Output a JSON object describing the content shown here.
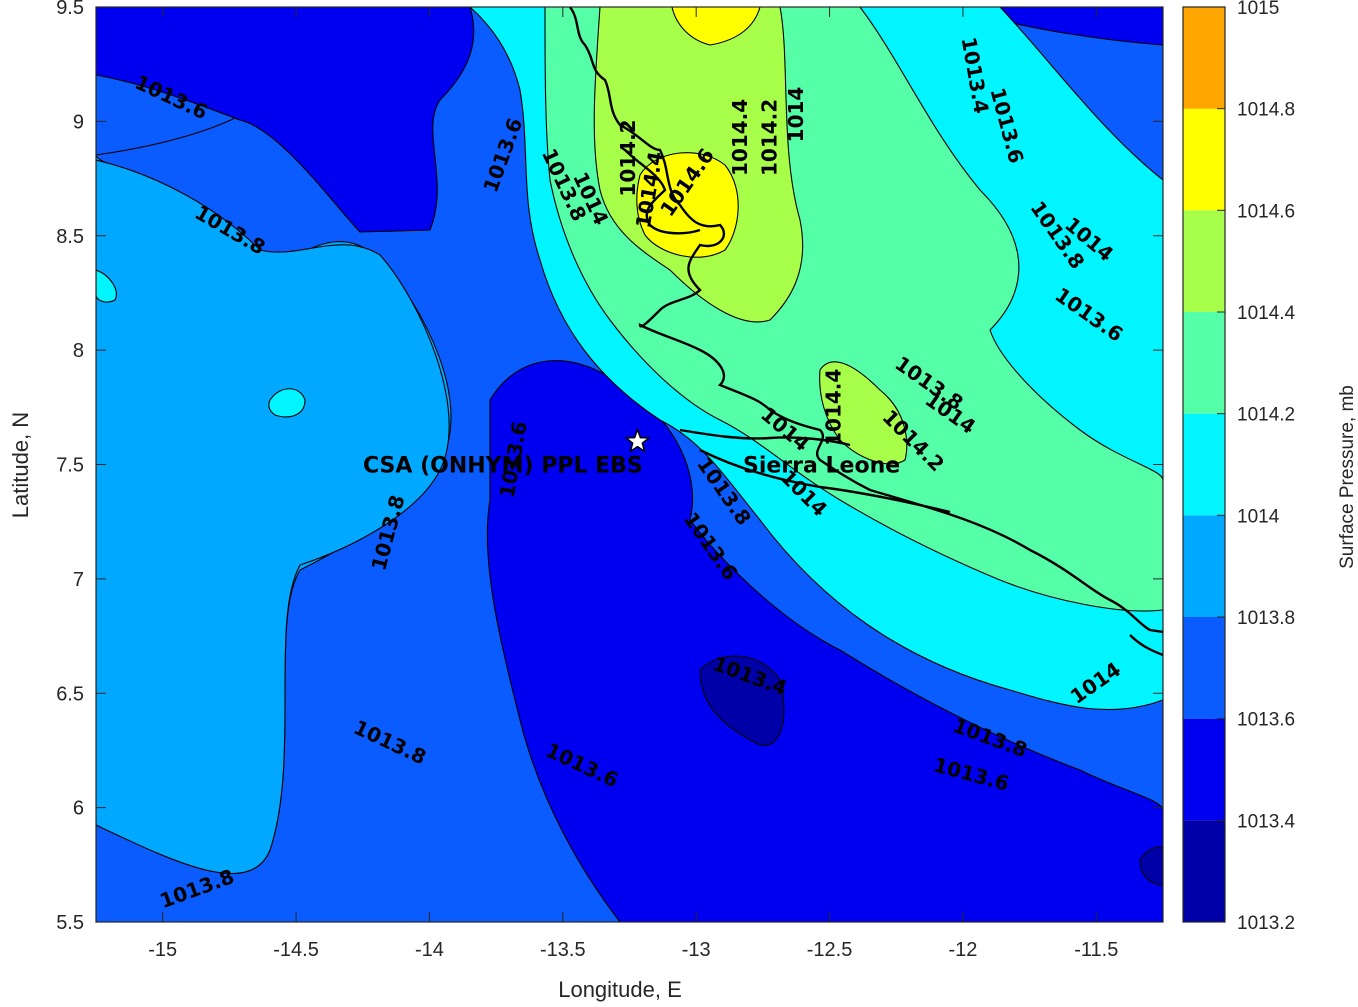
{
  "map": {
    "x_axis": {
      "label": "Longitude, E",
      "range": [
        -15.25,
        -11.25
      ],
      "ticks": [
        -15,
        -14.5,
        -14,
        -13.5,
        -13,
        -12.5,
        -12,
        -11.5
      ],
      "tick_labels": [
        "-15",
        "-14.5",
        "-14",
        "-13.5",
        "-13",
        "-12.5",
        "-12",
        "-11.5"
      ]
    },
    "y_axis": {
      "label": "Latitude, N",
      "range": [
        5.5,
        9.5
      ],
      "ticks": [
        5.5,
        6,
        6.5,
        7,
        7.5,
        8,
        8.5,
        9,
        9.5
      ],
      "tick_labels": [
        "5.5",
        "6",
        "6.5",
        "7",
        "7.5",
        "8",
        "8.5",
        "9",
        "9.5"
      ]
    },
    "colorbar": {
      "label": "Surface Pressure, mb",
      "levels": [
        1013.2,
        1013.4,
        1013.6,
        1013.8,
        1014.0,
        1014.2,
        1014.4,
        1014.6,
        1014.8,
        1015.0
      ],
      "tick_labels": [
        "1013.2",
        "1013.4",
        "1013.6",
        "1013.8",
        "1014",
        "1014.2",
        "1014.4",
        "1014.6",
        "1014.8",
        "1015"
      ],
      "colors": [
        "#0000a8",
        "#0000f0",
        "#0a5cff",
        "#00a8ff",
        "#00f5ff",
        "#55ffa8",
        "#a8ff4a",
        "#ffff00",
        "#ffa500",
        "#ff5500"
      ]
    },
    "site": {
      "name": "CSA (ONHYM) PPL EBS",
      "lon": -13.22,
      "lat": 7.6,
      "marker": "star-icon",
      "marker_color": "#ffffff"
    },
    "country_label": "Sierra Leone",
    "contour_labels": [
      {
        "text": "1013.6",
        "lon": -14.97,
        "lat": 9.1,
        "rot": 25
      },
      {
        "text": "1013.8",
        "lon": -14.75,
        "lat": 8.52,
        "rot": 30
      },
      {
        "text": "1013.6",
        "lon": -13.72,
        "lat": 8.85,
        "rot": -70
      },
      {
        "text": "1013.8",
        "lon": -13.5,
        "lat": 8.72,
        "rot": 65
      },
      {
        "text": "1014",
        "lon": -13.4,
        "lat": 8.66,
        "rot": 65
      },
      {
        "text": "1014.2",
        "lon": -13.25,
        "lat": 8.84,
        "rot": -90
      },
      {
        "text": "1014.4",
        "lon": -13.17,
        "lat": 8.7,
        "rot": -80
      },
      {
        "text": "1014.6",
        "lon": -13.03,
        "lat": 8.73,
        "rot": -55
      },
      {
        "text": "1014.4",
        "lon": -12.83,
        "lat": 8.93,
        "rot": -90
      },
      {
        "text": "1014.2",
        "lon": -12.72,
        "lat": 8.93,
        "rot": -90
      },
      {
        "text": "1014",
        "lon": -12.62,
        "lat": 9.03,
        "rot": -90
      },
      {
        "text": "1013.4",
        "lon": -11.96,
        "lat": 9.2,
        "rot": 80
      },
      {
        "text": "1013.6",
        "lon": -11.84,
        "lat": 8.98,
        "rot": 75
      },
      {
        "text": "1013.8",
        "lon": -11.65,
        "lat": 8.5,
        "rot": 55
      },
      {
        "text": "1014",
        "lon": -11.53,
        "lat": 8.48,
        "rot": 40
      },
      {
        "text": "1013.6",
        "lon": -11.53,
        "lat": 8.15,
        "rot": 35
      },
      {
        "text": "1013.8",
        "lon": -12.13,
        "lat": 7.85,
        "rot": 35
      },
      {
        "text": "1014",
        "lon": -12.05,
        "lat": 7.72,
        "rot": 35
      },
      {
        "text": "1014.2",
        "lon": -12.19,
        "lat": 7.6,
        "rot": 45
      },
      {
        "text": "1014.4",
        "lon": -12.48,
        "lat": 7.75,
        "rot": -90
      },
      {
        "text": "1014",
        "lon": -12.67,
        "lat": 7.65,
        "rot": 40
      },
      {
        "text": "1013.8",
        "lon": -12.9,
        "lat": 7.38,
        "rot": 55
      },
      {
        "text": "1014",
        "lon": -12.6,
        "lat": 7.37,
        "rot": 45
      },
      {
        "text": "1013.6",
        "lon": -12.95,
        "lat": 7.14,
        "rot": 55
      },
      {
        "text": "1013.6",
        "lon": -13.68,
        "lat": 7.52,
        "rot": -80
      },
      {
        "text": "1013.8",
        "lon": -14.15,
        "lat": 7.2,
        "rot": -75
      },
      {
        "text": "1013.4",
        "lon": -12.8,
        "lat": 6.57,
        "rot": 20
      },
      {
        "text": "1013.8",
        "lon": -14.15,
        "lat": 6.28,
        "rot": 25
      },
      {
        "text": "1013.6",
        "lon": -13.43,
        "lat": 6.18,
        "rot": 25
      },
      {
        "text": "1013.8",
        "lon": -11.9,
        "lat": 6.3,
        "rot": 20
      },
      {
        "text": "1013.6",
        "lon": -11.97,
        "lat": 6.14,
        "rot": 15
      },
      {
        "text": "1014",
        "lon": -11.5,
        "lat": 6.54,
        "rot": -35
      },
      {
        "text": "1013.8",
        "lon": -14.87,
        "lat": 5.64,
        "rot": -20
      }
    ]
  }
}
